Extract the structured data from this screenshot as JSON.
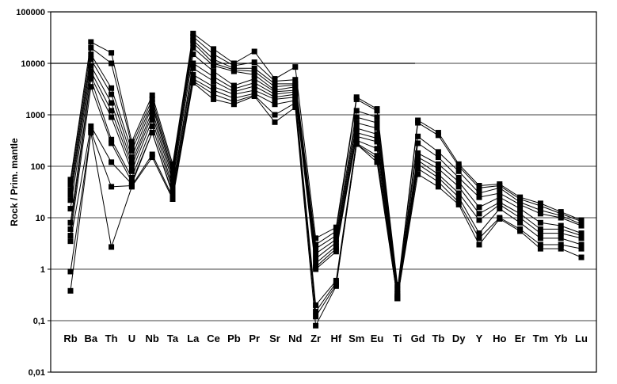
{
  "chart_data": {
    "type": "line",
    "title": "",
    "xlabel": "",
    "ylabel": "Rock / Prim. mantle",
    "y_scale": "log",
    "ylim": [
      0.01,
      100000
    ],
    "y_ticks": [
      {
        "value": 0.01,
        "label": "0,01"
      },
      {
        "value": 0.1,
        "label": "0,1"
      },
      {
        "value": 1,
        "label": "1"
      },
      {
        "value": 10,
        "label": "10"
      },
      {
        "value": 100,
        "label": "100"
      },
      {
        "value": 1000,
        "label": "1000"
      },
      {
        "value": 10000,
        "label": "10000"
      },
      {
        "value": 100000,
        "label": "100000"
      }
    ],
    "grid": true,
    "legend": "none",
    "line_color": "#000000",
    "marker": "filled-square",
    "categories": [
      "Rb",
      "Ba",
      "Th",
      "U",
      "Nb",
      "Ta",
      "La",
      "Ce",
      "Pb",
      "Pr",
      "Sr",
      "Nd",
      "Zr",
      "Hf",
      "Sm",
      "Eu",
      "Ti",
      "Gd",
      "Tb",
      "Dy",
      "Y",
      "Ho",
      "Er",
      "Tm",
      "Yb",
      "Lu"
    ],
    "series": [
      {
        "values": [
          55,
          26000,
          16000,
          300,
          2400,
          110,
          38000,
          19000,
          10000,
          17000,
          5000,
          8500,
          4.0,
          6.5,
          2200,
          1300,
          0.5,
          null,
          null,
          null,
          null,
          null,
          null,
          null,
          null,
          null
        ]
      },
      {
        "values": [
          45,
          20000,
          10000,
          250,
          2000,
          95,
          33000,
          15000,
          9000,
          10500,
          4500,
          4800,
          3.0,
          5.5,
          2000,
          1200,
          0.45,
          null,
          null,
          null,
          null,
          null,
          null,
          null,
          null,
          null
        ]
      },
      {
        "values": [
          35,
          15000,
          3300,
          200,
          1700,
          80,
          28000,
          12000,
          8000,
          8000,
          4000,
          4000,
          2.5,
          4.5,
          1200,
          900,
          0.4,
          780,
          450,
          110,
          42,
          45,
          25,
          19,
          13,
          9
        ]
      },
      {
        "values": [
          28,
          12000,
          2500,
          150,
          1500,
          70,
          25000,
          10000,
          7500,
          7000,
          3500,
          3800,
          2.0,
          3.8,
          900,
          700,
          0.35,
          700,
          400,
          100,
          38,
          42,
          23,
          17,
          12,
          8.5
        ]
      },
      {
        "values": [
          22,
          9000,
          1700,
          120,
          1200,
          60,
          20000,
          9000,
          7000,
          6000,
          3000,
          3500,
          1.6,
          3.3,
          700,
          550,
          0.33,
          380,
          190,
          80,
          30,
          38,
          20,
          14,
          11,
          7.5
        ]
      },
      {
        "values": [
          15,
          7000,
          1200,
          100,
          1000,
          50,
          15000,
          7000,
          3700,
          5000,
          2800,
          3000,
          1.3,
          2.8,
          550,
          420,
          0.3,
          280,
          150,
          60,
          25,
          30,
          18,
          12,
          10,
          7
        ]
      },
      {
        "values": [
          8,
          5500,
          900,
          80,
          800,
          40,
          10000,
          5500,
          3200,
          4200,
          2500,
          2800,
          1.1,
          2.5,
          450,
          350,
          0.3,
          180,
          110,
          50,
          16,
          25,
          15,
          8,
          7,
          5
        ]
      },
      {
        "values": [
          6,
          5000,
          330,
          60,
          600,
          35,
          8000,
          4500,
          2800,
          3600,
          2200,
          2500,
          1.0,
          2.2,
          380,
          300,
          0.28,
          150,
          90,
          40,
          12,
          20,
          12,
          6,
          6,
          4.5
        ]
      },
      {
        "values": [
          4.5,
          3500,
          280,
          50,
          450,
          30,
          6000,
          3500,
          2500,
          3000,
          2000,
          2200,
          0.2,
          0.6,
          320,
          220,
          0.27,
          130,
          70,
          30,
          9,
          18,
          10,
          5,
          5,
          4
        ]
      },
      {
        "values": [
          3.5,
          600,
          120,
          45,
          450,
          28,
          5000,
          3000,
          2100,
          2600,
          1600,
          1900,
          0.15,
          0.55,
          280,
          160,
          0.27,
          110,
          60,
          25,
          5,
          15,
          8,
          4,
          4,
          3
        ]
      },
      {
        "values": [
          0.9,
          480,
          40,
          42,
          170,
          25,
          4500,
          2500,
          1800,
          2400,
          1000,
          1700,
          0.12,
          0.5,
          270,
          140,
          0.27,
          90,
          50,
          20,
          4,
          10,
          6,
          3,
          3,
          2.5
        ]
      },
      {
        "values": [
          0.38,
          450,
          2.7,
          40,
          150,
          23,
          4200,
          2000,
          1600,
          2300,
          720,
          1400,
          0.08,
          0.47,
          270,
          120,
          0.27,
          70,
          40,
          18,
          3,
          9.5,
          5.5,
          2.5,
          2.5,
          1.7
        ]
      }
    ],
    "reference_line_at": 10000
  }
}
